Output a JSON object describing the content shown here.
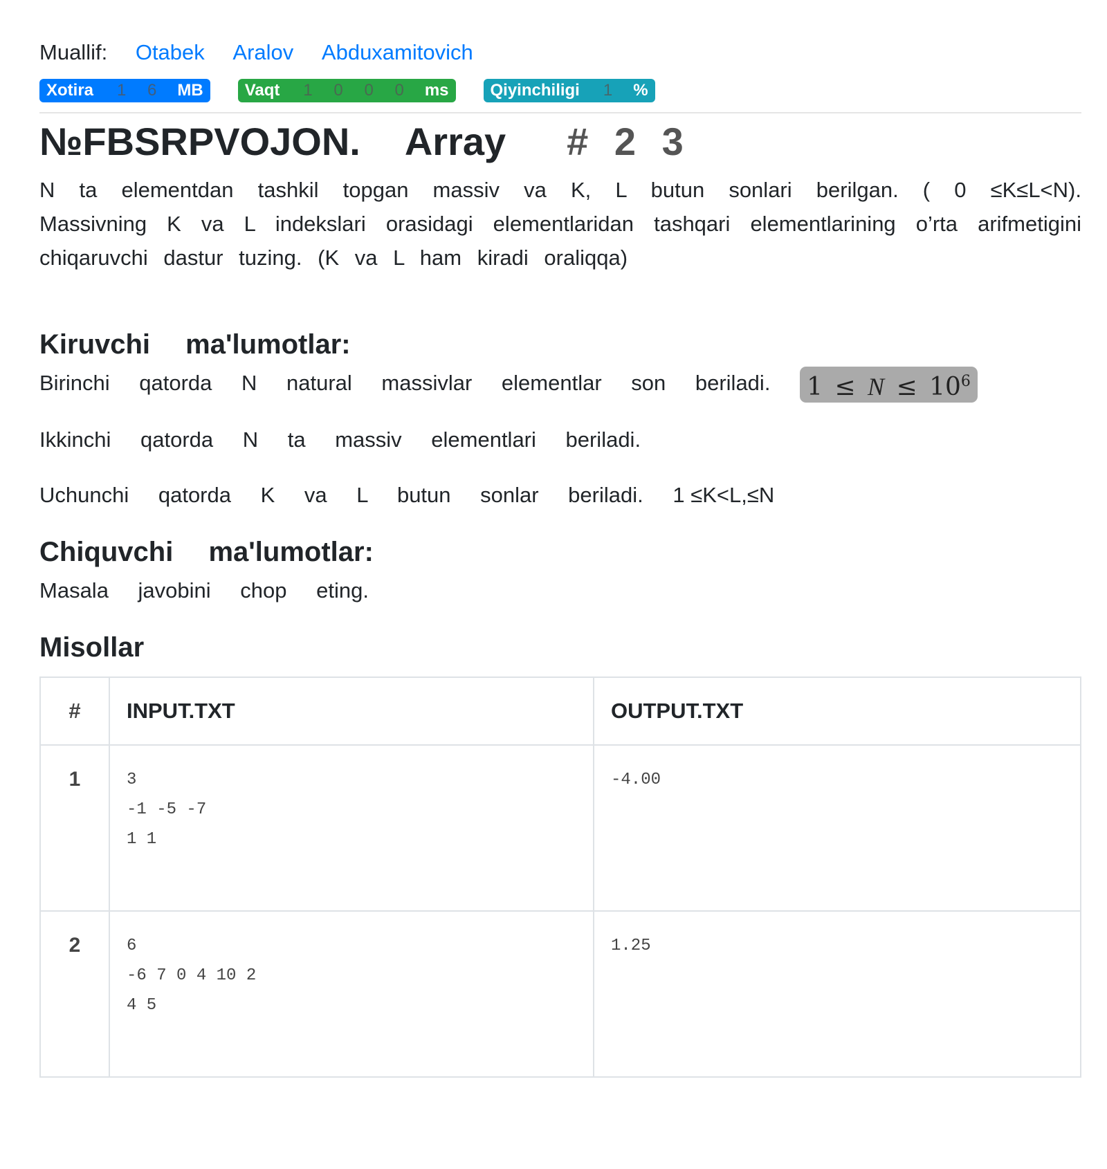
{
  "author": {
    "label": "Muallif:",
    "names": [
      "Otabek",
      "Aralov",
      "Abduxamitovich"
    ]
  },
  "badges": [
    {
      "label": "Xotira",
      "value": "1 6",
      "unit": "MB",
      "color": "#007bff"
    },
    {
      "label": "Vaqt",
      "value": "1 0 0 0",
      "unit": "ms",
      "color": "#28a745"
    },
    {
      "label": "Qiyinchiligi",
      "value": "1",
      "unit": "%",
      "color": "#17a2b8"
    }
  ],
  "title": {
    "code": "№FBSRPVOJON.",
    "name": "Array",
    "number": "# 2 3"
  },
  "statement": "N ta elementdan tashkil topgan massiv va K, L butun sonlari berilgan. ( 0 ≤K≤L<N). Massivning K va L indekslari orasidagi elementlaridan tashqari elementlarining o’rta arifmetigini chiqaruvchi dastur tuzing. (K va L ham kiradi oraliqqa)",
  "input": {
    "heading": "Kiruvchi ma'lumotlar:",
    "line1": "Birinchi qatorda N natural massivlar elementlar son beriladi.",
    "line1_math": "1 ≤ N ≤ 10^6",
    "line2": "Ikkinchi qatorda N ta massiv elementlari beriladi.",
    "line3": "Uchunchi qatorda K va L butun sonlar beriladi.",
    "line3_constraint": "1 ≤K<L,≤N"
  },
  "output": {
    "heading": "Chiquvchi ma'lumotlar:",
    "line1": "Masala javobini chop eting."
  },
  "examples": {
    "heading": "Misollar",
    "columns": [
      "#",
      "INPUT.TXT",
      "OUTPUT.TXT"
    ],
    "rows": [
      {
        "n": "1",
        "input": "3\n-1 -5 -7\n1 1",
        "output": "-4.00"
      },
      {
        "n": "2",
        "input": "6\n-6 7 0 4 10 2\n4 5",
        "output": "1.25"
      }
    ]
  }
}
